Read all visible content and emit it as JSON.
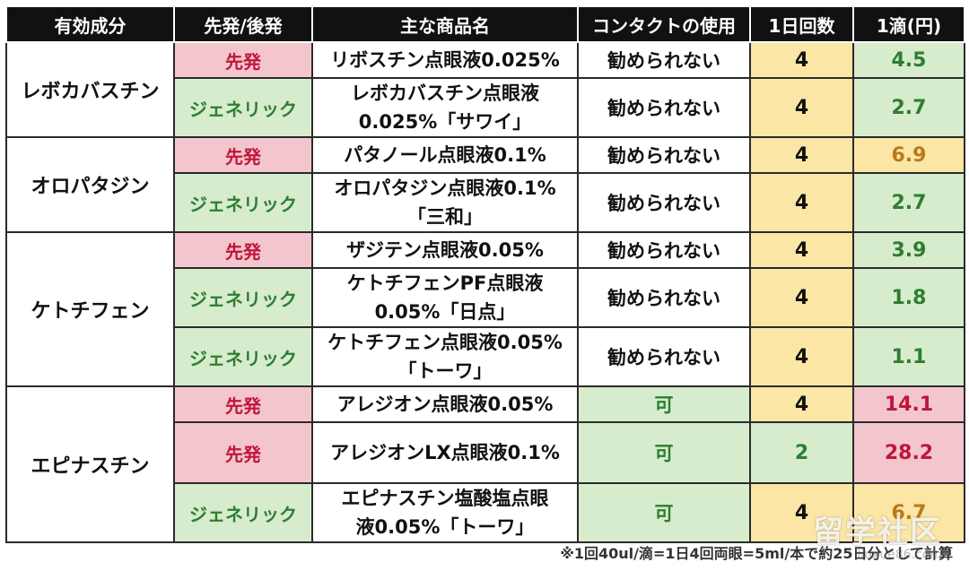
{
  "headers": [
    "有効成分",
    "先発/後発",
    "主な商品名",
    "コンタクトの使用",
    "1日回数",
    "1滴(円)"
  ],
  "groups": [
    {
      "ingredient": "レボカバスチン",
      "rows": [
        {
          "type": "先発",
          "product": "リボスチン点眼液0.025%",
          "contact": "勧められない",
          "freq": "4",
          "price": "4.5"
        },
        {
          "type": "ジェネリック",
          "product_line1": "レボカバスチン点眼液",
          "product_line2": "0.025%「サワイ」",
          "contact": "勧められない",
          "freq": "4",
          "price": "2.7"
        }
      ]
    },
    {
      "ingredient": "オロパタジン",
      "rows": [
        {
          "type": "先発",
          "product": "パタノール点眼液0.1%",
          "contact": "勧められない",
          "freq": "4",
          "price": "6.9"
        },
        {
          "type": "ジェネリック",
          "product_line1": "オロパタジン点眼液0.1%",
          "product_line2": "「三和」",
          "contact": "勧められない",
          "freq": "4",
          "price": "2.7"
        }
      ]
    },
    {
      "ingredient": "ケトチフェン",
      "rows": [
        {
          "type": "先発",
          "product": "ザジテン点眼液0.05%",
          "contact": "勧められない",
          "freq": "4",
          "price": "3.9"
        },
        {
          "type": "ジェネリック",
          "product_line1": "ケトチフェンPF点眼液",
          "product_line2": "0.05%「日点」",
          "contact": "勧められない",
          "freq": "4",
          "price": "1.8"
        },
        {
          "type": "ジェネリック",
          "product_line1": "ケトチフェン点眼液0.05%",
          "product_line2": "「トーワ」",
          "contact": "勧められない",
          "freq": "4",
          "price": "1.1"
        }
      ]
    },
    {
      "ingredient": "エピナスチン",
      "rows": [
        {
          "type": "先発",
          "product": "アレジオン点眼液0.05%",
          "contact": "可",
          "freq": "4",
          "price": "14.1"
        },
        {
          "type": "先発",
          "product": "アレジオンLX点眼液0.1%",
          "contact": "可",
          "freq": "2",
          "price": "28.2"
        },
        {
          "type": "ジェネリック",
          "product_line1": "エピナスチン塩酸塩点眼",
          "product_line2": "液0.05%「トーワ」",
          "contact": "可",
          "freq": "4",
          "price": "6.7"
        }
      ]
    }
  ],
  "footnote": "※1回40ul/滴=1日4回両眼=5ml/本で約25日分として計算",
  "watermark": "留学社区",
  "watermark_url": "liuxue86.com",
  "colors": {
    "header_bg": "#111111",
    "original_bg": "#f3c6ce",
    "generic_bg": "#d6eccd",
    "yellow_bg": "#fbe6a5",
    "red_text": "#c0163a",
    "green_text": "#2e7d32"
  }
}
